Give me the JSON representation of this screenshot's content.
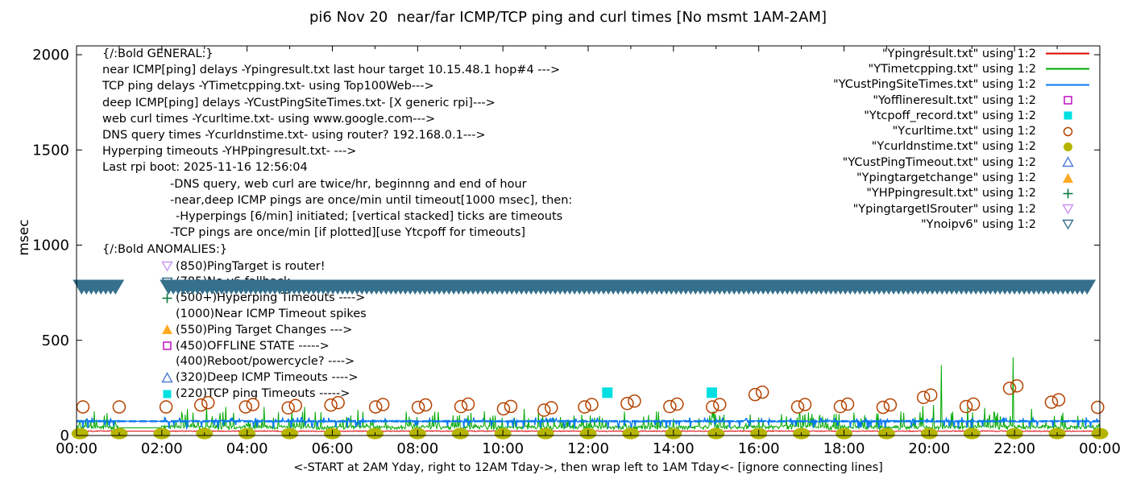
{
  "chart_data": {
    "type": "line",
    "title": "pi6 Nov 20  near/far ICMP/TCP ping and curl times [No msmt 1AM-2AM]",
    "xlabel": "<-START at 2AM Yday, right to 12AM Tday->, then wrap left to 1AM Tday<- [ignore connecting lines]",
    "ylabel": "msec",
    "x_hours_range": [
      0,
      24
    ],
    "x_tick_labels": [
      "00:00",
      "02:00",
      "04:00",
      "06:00",
      "08:00",
      "10:00",
      "12:00",
      "14:00",
      "16:00",
      "18:00",
      "20:00",
      "22:00",
      "00:00"
    ],
    "x_minor_tick_every_hours": 1,
    "ylim": [
      0,
      2000
    ],
    "y_ticks": [
      0,
      500,
      1000,
      1500,
      2000
    ],
    "no_measurement_gap_hours": [
      1.19,
      1.95
    ],
    "series": [
      {
        "name": "\"Ypingresult.txt\" using 1:2",
        "style": "line",
        "color": "#e00000",
        "baseline_msec": 23,
        "noise_msec": 5
      },
      {
        "name": "\"YTimetcpping.txt\" using 1:2",
        "style": "line",
        "color": "#00a800",
        "baseline_msec": 40,
        "noise_msec": 28,
        "spikes": [
          {
            "t": 2.6,
            "v": 140
          },
          {
            "t": 3.05,
            "v": 155
          },
          {
            "t": 3.5,
            "v": 150
          },
          {
            "t": 4.4,
            "v": 150
          },
          {
            "t": 5.05,
            "v": 125
          },
          {
            "t": 5.35,
            "v": 150
          },
          {
            "t": 6.6,
            "v": 135
          },
          {
            "t": 7.8,
            "v": 100
          },
          {
            "t": 8.35,
            "v": 105
          },
          {
            "t": 9.7,
            "v": 95
          },
          {
            "t": 10.5,
            "v": 140
          },
          {
            "t": 11.2,
            "v": 90
          },
          {
            "t": 12.15,
            "v": 95
          },
          {
            "t": 13.3,
            "v": 100
          },
          {
            "t": 14.6,
            "v": 90
          },
          {
            "t": 15.8,
            "v": 110
          },
          {
            "t": 16.9,
            "v": 95
          },
          {
            "t": 17.5,
            "v": 100
          },
          {
            "t": 18.4,
            "v": 90
          },
          {
            "t": 19.4,
            "v": 120
          },
          {
            "t": 19.85,
            "v": 155
          },
          {
            "t": 20.1,
            "v": 160
          },
          {
            "t": 20.28,
            "v": 370
          },
          {
            "t": 20.55,
            "v": 125
          },
          {
            "t": 20.9,
            "v": 150
          },
          {
            "t": 21.3,
            "v": 145
          },
          {
            "t": 21.6,
            "v": 120
          },
          {
            "t": 21.97,
            "v": 410
          },
          {
            "t": 22.4,
            "v": 140
          },
          {
            "t": 23.1,
            "v": 105
          },
          {
            "t": 23.6,
            "v": 90
          }
        ]
      },
      {
        "name": "\"YCustPingSiteTimes.txt\" using 1:2",
        "style": "line",
        "color": "#0878f0",
        "baseline_msec": 75,
        "noise_msec": 13
      },
      {
        "name": "\"Yofflineresult.txt\" using 1:2",
        "style": "points",
        "marker": "square-open",
        "color": "#bb00bb",
        "points": []
      },
      {
        "name": "\"Ytcpoff_record.txt\" using 1:2",
        "style": "points",
        "marker": "square-filled",
        "color": "#00e0e0",
        "points": [
          {
            "t": 12.45,
            "v": 225
          },
          {
            "t": 14.9,
            "v": 225
          }
        ]
      },
      {
        "name": "\"Ycurltime.txt\" using 1:2",
        "style": "points",
        "marker": "circle-open",
        "color": "#b54300",
        "points": [
          {
            "t": 0.15,
            "v": 150,
            "n": 1
          },
          {
            "t": 1.0,
            "v": 150,
            "n": 1
          },
          {
            "t": 2.1,
            "v": 150,
            "n": 1
          },
          {
            "t": 3.0,
            "v": 160,
            "n": 2
          },
          {
            "t": 4.05,
            "v": 150,
            "n": 2
          },
          {
            "t": 5.05,
            "v": 145,
            "n": 2
          },
          {
            "t": 6.05,
            "v": 160,
            "n": 2
          },
          {
            "t": 7.1,
            "v": 150,
            "n": 2
          },
          {
            "t": 8.1,
            "v": 148,
            "n": 2
          },
          {
            "t": 9.1,
            "v": 152,
            "n": 2
          },
          {
            "t": 10.1,
            "v": 140,
            "n": 2
          },
          {
            "t": 11.05,
            "v": 133,
            "n": 2
          },
          {
            "t": 12.0,
            "v": 150,
            "n": 2
          },
          {
            "t": 13.0,
            "v": 168,
            "n": 2
          },
          {
            "t": 14.0,
            "v": 152,
            "n": 2
          },
          {
            "t": 15.0,
            "v": 150,
            "n": 2
          },
          {
            "t": 16.0,
            "v": 215,
            "n": 2
          },
          {
            "t": 17.0,
            "v": 150,
            "n": 2
          },
          {
            "t": 18.0,
            "v": 152,
            "n": 2
          },
          {
            "t": 19.0,
            "v": 148,
            "n": 2
          },
          {
            "t": 19.95,
            "v": 200,
            "n": 2
          },
          {
            "t": 20.95,
            "v": 152,
            "n": 2
          },
          {
            "t": 21.97,
            "v": 248,
            "n": 2
          },
          {
            "t": 22.95,
            "v": 175,
            "n": 2
          },
          {
            "t": 23.95,
            "v": 148,
            "n": 1
          }
        ]
      },
      {
        "name": "\"Ycurldnstime.txt\" using 1:2",
        "style": "points",
        "marker": "circle-filled",
        "color": "#b5b500",
        "points": [
          {
            "t": 0.08,
            "v": 10
          },
          {
            "t": 1,
            "v": 10
          },
          {
            "t": 2,
            "v": 10
          },
          {
            "t": 3,
            "v": 10
          },
          {
            "t": 4,
            "v": 10
          },
          {
            "t": 5,
            "v": 10
          },
          {
            "t": 6,
            "v": 10
          },
          {
            "t": 7,
            "v": 10
          },
          {
            "t": 8,
            "v": 10
          },
          {
            "t": 9,
            "v": 10
          },
          {
            "t": 10,
            "v": 10
          },
          {
            "t": 11,
            "v": 10
          },
          {
            "t": 12,
            "v": 10
          },
          {
            "t": 13,
            "v": 10
          },
          {
            "t": 14,
            "v": 10
          },
          {
            "t": 15,
            "v": 10
          },
          {
            "t": 16,
            "v": 10
          },
          {
            "t": 17,
            "v": 10
          },
          {
            "t": 18,
            "v": 10
          },
          {
            "t": 19,
            "v": 10
          },
          {
            "t": 20,
            "v": 10
          },
          {
            "t": 21,
            "v": 10
          },
          {
            "t": 22,
            "v": 10
          },
          {
            "t": 23,
            "v": 10
          },
          {
            "t": 24,
            "v": 10
          }
        ]
      },
      {
        "name": "\"YCustPingTimeout.txt\" using 1:2",
        "style": "points",
        "marker": "triangle-up-open",
        "color": "#4f7ad9",
        "points": []
      },
      {
        "name": "\"Ypingtargetchange\" using 1:2",
        "style": "points",
        "marker": "triangle-up-filled",
        "color": "#ffaa22",
        "points": []
      },
      {
        "name": "\"YHPpingresult.txt\" using 1:2",
        "style": "points",
        "marker": "plus",
        "color": "#0f7a40",
        "points": []
      },
      {
        "name": "\"YpingtargetISrouter\" using 1:2",
        "style": "points",
        "marker": "triangle-down-open",
        "color": "#c892f0",
        "points": []
      },
      {
        "name": "\"Ynoipv6\" using 1:2",
        "style": "band-of-triangle-down",
        "marker": "triangle-down-open",
        "color": "#35708c",
        "band_msec": 780,
        "band_segments_hours": [
          [
            -0.09,
            1.19
          ],
          [
            1.95,
            24.04
          ]
        ]
      }
    ]
  },
  "annotations": {
    "general": {
      "lines": [
        {
          "text": "{/:Bold GENERAL:}"
        },
        {
          "text": "near ICMP[ping] delays -Ypingresult.txt last hour target 10.15.48.1 hop#4 --->"
        },
        {
          "text": "TCP ping delays -YTimetcpping.txt- using Top100Web--->"
        },
        {
          "text": "deep ICMP[ping] delays -YCustPingSiteTimes.txt- [X generic rpi]--->"
        },
        {
          "text": "web curl times -Ycurltime.txt- using www.google.com--->"
        },
        {
          "text": "DNS query times -Ycurldnstime.txt- using router? 192.168.0.1--->"
        },
        {
          "text": "Hyperping timeouts -YHPpingresult.txt- --->"
        },
        {
          "text": "Last rpi boot: 2025-11-16 12:56:04"
        },
        {
          "text": "-DNS query, web curl are twice/hr, beginnng and end of hour",
          "indent": 1
        },
        {
          "text": "-near,deep ICMP pings are once/min until timeout[1000 msec], then:",
          "indent": 1
        },
        {
          "text": "-Hyperpings [6/min] initiated; [vertical stacked] ticks are timeouts",
          "indent": 2
        },
        {
          "text": "-TCP pings are once/min [if plotted][use Ytcpoff for timeouts]",
          "indent": 1
        }
      ]
    },
    "anomalies": {
      "header": "{/:Bold ANOMALIES:}",
      "items": [
        {
          "marker": "triangle-down-open",
          "color": "#c892f0",
          "text": "(850)PingTarget is router!"
        },
        {
          "marker": "triangle-down-open",
          "color": "#35708c",
          "text": "(785)No v6 fallback"
        },
        {
          "marker": "plus",
          "color": "#0f7a40",
          "text": "(500+)Hyperping Timeouts ---->"
        },
        {
          "marker": "",
          "color": "",
          "text": "(1000)Near ICMP Timeout spikes"
        },
        {
          "marker": "triangle-up-filled",
          "color": "#ffaa22",
          "text": "(550)Ping Target Changes --->"
        },
        {
          "marker": "square-open",
          "color": "#bb00bb",
          "text": "(450)OFFLINE STATE ----->"
        },
        {
          "marker": "",
          "color": "",
          "text": "(400)Reboot/powercycle? ---->"
        },
        {
          "marker": "triangle-up-open",
          "color": "#4f7ad9",
          "text": "(320)Deep ICMP Timeouts ---->"
        },
        {
          "marker": "square-filled",
          "color": "#00e0e0",
          "text": "(220)TCP ping Timeouts ----->"
        }
      ]
    }
  }
}
